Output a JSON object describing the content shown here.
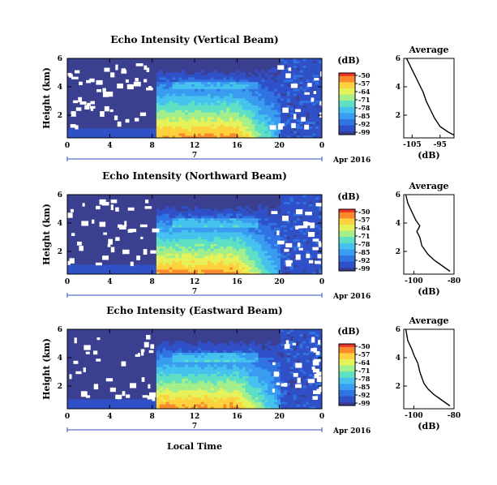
{
  "colors": {
    "background": "#3b3f8f",
    "colormap": [
      "#3a3d91",
      "#3050c8",
      "#2f74e2",
      "#3a9cf0",
      "#45c3ee",
      "#5fe0c4",
      "#a2ef8c",
      "#e6f25a",
      "#fdd23c",
      "#fb8a2c",
      "#e8322a"
    ],
    "line": "#000000"
  },
  "chart_data": [
    {
      "type": "heatmap",
      "title": "Echo Intensity (Vertical Beam)",
      "ylabel": "Height (km)",
      "xlabel": "",
      "x_ticks": [
        "0",
        "4",
        "8",
        "12",
        "16",
        "20",
        "0"
      ],
      "y_ticks": [
        "6",
        "4",
        "2"
      ],
      "xlim_hours": [
        0,
        24
      ],
      "ylim_km": [
        0.4,
        6
      ],
      "date_axis": {
        "day": "7",
        "month_year": "Apr 2016"
      },
      "colorbar": {
        "unit": "(dB)",
        "ticks": [
          "-50",
          "-57",
          "-64",
          "-71",
          "-78",
          "-85",
          "-92",
          "-99"
        ],
        "range": [
          -99,
          -50
        ]
      },
      "inset": {
        "title": "Average",
        "xlabel": "(dB)",
        "x_ticks": [
          "-105",
          "-95"
        ],
        "y_ticks": [
          "6",
          "4",
          "2"
        ],
        "xlim": [
          -108,
          -90
        ],
        "profile": [
          [
            -90,
            0.6
          ],
          [
            -92,
            0.8
          ],
          [
            -95,
            1.2
          ],
          [
            -97,
            1.8
          ],
          [
            -99,
            2.6
          ],
          [
            -100,
            3.0
          ],
          [
            -101,
            3.6
          ],
          [
            -102.5,
            4.2
          ],
          [
            -104,
            4.8
          ],
          [
            -105,
            5.2
          ],
          [
            -106,
            5.6
          ],
          [
            -107,
            6.0
          ]
        ]
      },
      "features": {
        "high_echo_start_hour": 8.5,
        "layer_top_km": 4.1
      }
    },
    {
      "type": "heatmap",
      "title": "Echo Intensity (Northward Beam)",
      "ylabel": "Height (km)",
      "xlabel": "",
      "x_ticks": [
        "0",
        "4",
        "8",
        "12",
        "16",
        "20",
        "0"
      ],
      "y_ticks": [
        "6",
        "4",
        "2"
      ],
      "xlim_hours": [
        0,
        24
      ],
      "ylim_km": [
        0.4,
        6
      ],
      "date_axis": {
        "day": "7",
        "month_year": "Apr 2016"
      },
      "colorbar": {
        "unit": "(dB)",
        "ticks": [
          "-50",
          "-57",
          "-64",
          "-71",
          "-78",
          "-85",
          "-92",
          "-99"
        ],
        "range": [
          -99,
          -50
        ]
      },
      "inset": {
        "title": "Average",
        "xlabel": "(dB)",
        "x_ticks": [
          "-100",
          "-80"
        ],
        "y_ticks": [
          "6",
          "4",
          "2"
        ],
        "xlim": [
          -105,
          -80
        ],
        "profile": [
          [
            -82,
            0.6
          ],
          [
            -86,
            1.0
          ],
          [
            -90,
            1.4
          ],
          [
            -93,
            1.8
          ],
          [
            -96,
            2.4
          ],
          [
            -97,
            3.0
          ],
          [
            -98.5,
            3.4
          ],
          [
            -97,
            3.8
          ],
          [
            -99,
            4.2
          ],
          [
            -101,
            4.8
          ],
          [
            -103,
            5.4
          ],
          [
            -104,
            6.0
          ]
        ]
      },
      "features": {
        "high_echo_start_hour": 8.5,
        "layer_top_km": 4.0
      }
    },
    {
      "type": "heatmap",
      "title": "Echo Intensity (Eastward Beam)",
      "ylabel": "Height (km)",
      "xlabel": "Local Time",
      "x_ticks": [
        "0",
        "4",
        "8",
        "12",
        "16",
        "20",
        "0"
      ],
      "y_ticks": [
        "6",
        "4",
        "2"
      ],
      "xlim_hours": [
        0,
        24
      ],
      "ylim_km": [
        0.4,
        6
      ],
      "date_axis": {
        "day": "7",
        "month_year": "Apr 2016"
      },
      "colorbar": {
        "unit": "(dB)",
        "ticks": [
          "-50",
          "-57",
          "-64",
          "-71",
          "-78",
          "-85",
          "-92",
          "-99"
        ],
        "range": [
          -99,
          -50
        ]
      },
      "inset": {
        "title": "Average",
        "xlabel": "(dB)",
        "x_ticks": [
          "-100",
          "-80"
        ],
        "y_ticks": [
          "6",
          "4",
          "2"
        ],
        "xlim": [
          -105,
          -80
        ],
        "profile": [
          [
            -82,
            0.6
          ],
          [
            -86,
            1.0
          ],
          [
            -90,
            1.4
          ],
          [
            -93,
            1.8
          ],
          [
            -95,
            2.2
          ],
          [
            -96,
            2.6
          ],
          [
            -97,
            3.0
          ],
          [
            -98,
            3.6
          ],
          [
            -100,
            4.2
          ],
          [
            -101,
            4.6
          ],
          [
            -103,
            5.2
          ],
          [
            -104,
            6.0
          ]
        ]
      },
      "features": {
        "high_echo_start_hour": 8.5,
        "layer_top_km": 4.0
      }
    }
  ]
}
